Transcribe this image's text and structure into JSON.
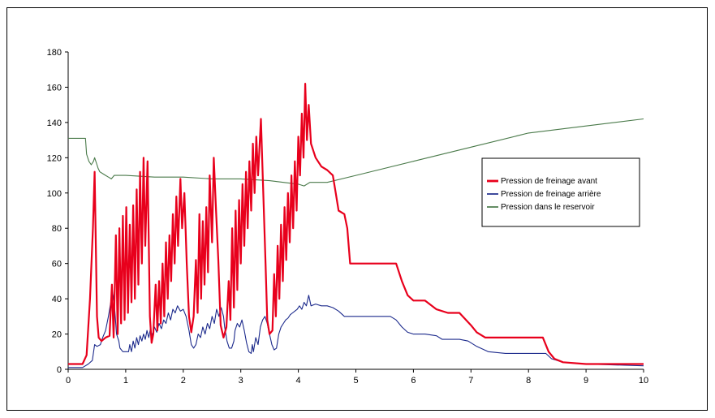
{
  "chart_data": {
    "type": "line",
    "title": "",
    "xlabel": "",
    "ylabel": "",
    "xlim": [
      0,
      10
    ],
    "ylim": [
      0,
      180
    ],
    "xticks": [
      0,
      1,
      2,
      3,
      4,
      5,
      6,
      7,
      8,
      9,
      10
    ],
    "yticks": [
      0,
      20,
      40,
      60,
      80,
      100,
      120,
      140,
      160,
      180
    ],
    "grid": false,
    "legend_position": "right",
    "series": [
      {
        "name": "Pression de freinage avant",
        "color": "#e8001c",
        "points": [
          [
            0,
            3
          ],
          [
            0.25,
            3
          ],
          [
            0.32,
            8
          ],
          [
            0.38,
            40
          ],
          [
            0.43,
            80
          ],
          [
            0.46,
            112
          ],
          [
            0.5,
            30
          ],
          [
            0.53,
            18
          ],
          [
            0.58,
            16
          ],
          [
            0.65,
            18
          ],
          [
            0.72,
            19
          ],
          [
            0.76,
            48
          ],
          [
            0.79,
            18
          ],
          [
            0.83,
            76
          ],
          [
            0.86,
            20
          ],
          [
            0.89,
            80
          ],
          [
            0.92,
            26
          ],
          [
            0.95,
            87
          ],
          [
            0.98,
            28
          ],
          [
            1.01,
            92
          ],
          [
            1.04,
            32
          ],
          [
            1.07,
            82
          ],
          [
            1.1,
            38
          ],
          [
            1.13,
            93
          ],
          [
            1.16,
            40
          ],
          [
            1.19,
            102
          ],
          [
            1.22,
            48
          ],
          [
            1.25,
            112
          ],
          [
            1.28,
            60
          ],
          [
            1.31,
            120
          ],
          [
            1.34,
            70
          ],
          [
            1.38,
            118
          ],
          [
            1.42,
            30
          ],
          [
            1.45,
            15
          ],
          [
            1.48,
            20
          ],
          [
            1.52,
            48
          ],
          [
            1.55,
            22
          ],
          [
            1.58,
            50
          ],
          [
            1.61,
            26
          ],
          [
            1.64,
            60
          ],
          [
            1.67,
            30
          ],
          [
            1.7,
            72
          ],
          [
            1.73,
            40
          ],
          [
            1.76,
            76
          ],
          [
            1.79,
            50
          ],
          [
            1.82,
            88
          ],
          [
            1.85,
            60
          ],
          [
            1.88,
            98
          ],
          [
            1.91,
            70
          ],
          [
            1.95,
            108
          ],
          [
            1.98,
            80
          ],
          [
            2.02,
            100
          ],
          [
            2.06,
            60
          ],
          [
            2.1,
            30
          ],
          [
            2.14,
            21
          ],
          [
            2.18,
            30
          ],
          [
            2.22,
            62
          ],
          [
            2.25,
            32
          ],
          [
            2.28,
            88
          ],
          [
            2.31,
            40
          ],
          [
            2.34,
            84
          ],
          [
            2.37,
            48
          ],
          [
            2.4,
            92
          ],
          [
            2.43,
            55
          ],
          [
            2.46,
            110
          ],
          [
            2.5,
            72
          ],
          [
            2.53,
            120
          ],
          [
            2.57,
            90
          ],
          [
            2.61,
            62
          ],
          [
            2.65,
            25
          ],
          [
            2.7,
            18
          ],
          [
            2.75,
            24
          ],
          [
            2.79,
            50
          ],
          [
            2.82,
            28
          ],
          [
            2.85,
            80
          ],
          [
            2.88,
            35
          ],
          [
            2.91,
            90
          ],
          [
            2.94,
            45
          ],
          [
            2.97,
            96
          ],
          [
            3.0,
            60
          ],
          [
            3.03,
            105
          ],
          [
            3.06,
            70
          ],
          [
            3.09,
            112
          ],
          [
            3.12,
            80
          ],
          [
            3.15,
            118
          ],
          [
            3.18,
            90
          ],
          [
            3.21,
            128
          ],
          [
            3.24,
            100
          ],
          [
            3.27,
            132
          ],
          [
            3.3,
            110
          ],
          [
            3.35,
            142
          ],
          [
            3.39,
            100
          ],
          [
            3.43,
            60
          ],
          [
            3.46,
            28
          ],
          [
            3.5,
            20
          ],
          [
            3.55,
            22
          ],
          [
            3.58,
            54
          ],
          [
            3.61,
            30
          ],
          [
            3.64,
            70
          ],
          [
            3.67,
            40
          ],
          [
            3.7,
            82
          ],
          [
            3.73,
            50
          ],
          [
            3.76,
            92
          ],
          [
            3.79,
            62
          ],
          [
            3.82,
            100
          ],
          [
            3.85,
            72
          ],
          [
            3.88,
            110
          ],
          [
            3.91,
            80
          ],
          [
            3.94,
            118
          ],
          [
            3.97,
            90
          ],
          [
            4.0,
            132
          ],
          [
            4.03,
            110
          ],
          [
            4.06,
            145
          ],
          [
            4.09,
            120
          ],
          [
            4.12,
            162
          ],
          [
            4.15,
            130
          ],
          [
            4.18,
            150
          ],
          [
            4.22,
            128
          ],
          [
            4.3,
            120
          ],
          [
            4.4,
            115
          ],
          [
            4.5,
            113
          ],
          [
            4.6,
            110
          ],
          [
            4.65,
            100
          ],
          [
            4.7,
            90
          ],
          [
            4.8,
            88
          ],
          [
            4.85,
            80
          ],
          [
            4.9,
            60
          ],
          [
            5.1,
            60
          ],
          [
            5.5,
            60
          ],
          [
            5.7,
            60
          ],
          [
            5.8,
            50
          ],
          [
            5.9,
            42
          ],
          [
            6.0,
            39
          ],
          [
            6.2,
            39
          ],
          [
            6.4,
            34
          ],
          [
            6.6,
            32
          ],
          [
            6.8,
            32
          ],
          [
            7.0,
            25
          ],
          [
            7.1,
            21
          ],
          [
            7.25,
            18
          ],
          [
            7.5,
            18
          ],
          [
            8.0,
            18
          ],
          [
            8.25,
            18
          ],
          [
            8.35,
            10
          ],
          [
            8.45,
            6
          ],
          [
            8.6,
            4
          ],
          [
            9.0,
            3
          ],
          [
            10,
            3
          ]
        ]
      },
      {
        "name": "Pression de freinage arrière",
        "color": "#1c2a8c",
        "points": [
          [
            0,
            1
          ],
          [
            0.25,
            1
          ],
          [
            0.35,
            3
          ],
          [
            0.42,
            5
          ],
          [
            0.46,
            14
          ],
          [
            0.5,
            13
          ],
          [
            0.56,
            14
          ],
          [
            0.6,
            18
          ],
          [
            0.65,
            22
          ],
          [
            0.7,
            30
          ],
          [
            0.74,
            38
          ],
          [
            0.76,
            46
          ],
          [
            0.8,
            38
          ],
          [
            0.84,
            20
          ],
          [
            0.88,
            16
          ],
          [
            0.9,
            12
          ],
          [
            0.95,
            10
          ],
          [
            1.0,
            10
          ],
          [
            1.05,
            10
          ],
          [
            1.07,
            14
          ],
          [
            1.1,
            10
          ],
          [
            1.13,
            16
          ],
          [
            1.16,
            12
          ],
          [
            1.19,
            18
          ],
          [
            1.22,
            14
          ],
          [
            1.25,
            19
          ],
          [
            1.28,
            16
          ],
          [
            1.31,
            20
          ],
          [
            1.34,
            17
          ],
          [
            1.37,
            22
          ],
          [
            1.4,
            18
          ],
          [
            1.43,
            23
          ],
          [
            1.46,
            19
          ],
          [
            1.5,
            24
          ],
          [
            1.54,
            21
          ],
          [
            1.58,
            26
          ],
          [
            1.62,
            23
          ],
          [
            1.66,
            28
          ],
          [
            1.7,
            26
          ],
          [
            1.74,
            32
          ],
          [
            1.78,
            28
          ],
          [
            1.82,
            34
          ],
          [
            1.86,
            32
          ],
          [
            1.9,
            36
          ],
          [
            1.95,
            33
          ],
          [
            2.0,
            34
          ],
          [
            2.05,
            30
          ],
          [
            2.1,
            22
          ],
          [
            2.14,
            14
          ],
          [
            2.18,
            12
          ],
          [
            2.22,
            14
          ],
          [
            2.26,
            20
          ],
          [
            2.3,
            18
          ],
          [
            2.34,
            24
          ],
          [
            2.38,
            20
          ],
          [
            2.42,
            26
          ],
          [
            2.46,
            23
          ],
          [
            2.5,
            30
          ],
          [
            2.54,
            26
          ],
          [
            2.58,
            34
          ],
          [
            2.62,
            30
          ],
          [
            2.66,
            35
          ],
          [
            2.7,
            30
          ],
          [
            2.72,
            24
          ],
          [
            2.76,
            16
          ],
          [
            2.8,
            12
          ],
          [
            2.84,
            12
          ],
          [
            2.88,
            16
          ],
          [
            2.9,
            22
          ],
          [
            2.94,
            26
          ],
          [
            2.98,
            24
          ],
          [
            3.02,
            28
          ],
          [
            3.06,
            22
          ],
          [
            3.1,
            15
          ],
          [
            3.14,
            10
          ],
          [
            3.18,
            9
          ],
          [
            3.2,
            14
          ],
          [
            3.22,
            10
          ],
          [
            3.26,
            18
          ],
          [
            3.3,
            14
          ],
          [
            3.34,
            24
          ],
          [
            3.38,
            28
          ],
          [
            3.42,
            30
          ],
          [
            3.46,
            26
          ],
          [
            3.5,
            20
          ],
          [
            3.54,
            14
          ],
          [
            3.58,
            11
          ],
          [
            3.62,
            12
          ],
          [
            3.66,
            20
          ],
          [
            3.7,
            24
          ],
          [
            3.74,
            26
          ],
          [
            3.78,
            28
          ],
          [
            3.82,
            29
          ],
          [
            3.86,
            31
          ],
          [
            3.9,
            32
          ],
          [
            3.94,
            33
          ],
          [
            3.98,
            34
          ],
          [
            4.02,
            36
          ],
          [
            4.06,
            34
          ],
          [
            4.1,
            38
          ],
          [
            4.14,
            36
          ],
          [
            4.18,
            42
          ],
          [
            4.22,
            36
          ],
          [
            4.3,
            37
          ],
          [
            4.4,
            36
          ],
          [
            4.5,
            36
          ],
          [
            4.6,
            35
          ],
          [
            4.7,
            33
          ],
          [
            4.8,
            30
          ],
          [
            5.0,
            30
          ],
          [
            5.5,
            30
          ],
          [
            5.6,
            30
          ],
          [
            5.7,
            28
          ],
          [
            5.8,
            24
          ],
          [
            5.9,
            21
          ],
          [
            6.0,
            20
          ],
          [
            6.2,
            20
          ],
          [
            6.4,
            19
          ],
          [
            6.5,
            17
          ],
          [
            6.8,
            17
          ],
          [
            6.95,
            16
          ],
          [
            7.1,
            13
          ],
          [
            7.3,
            10
          ],
          [
            7.6,
            9
          ],
          [
            8.0,
            9
          ],
          [
            8.3,
            9
          ],
          [
            8.4,
            6
          ],
          [
            8.6,
            4
          ],
          [
            9.0,
            3
          ],
          [
            10,
            2
          ]
        ]
      },
      {
        "name": "Pression dans le reservoir",
        "color": "#4a7a4a",
        "points": [
          [
            0,
            131
          ],
          [
            0.25,
            131
          ],
          [
            0.3,
            131
          ],
          [
            0.32,
            122
          ],
          [
            0.36,
            118
          ],
          [
            0.4,
            116
          ],
          [
            0.44,
            118
          ],
          [
            0.46,
            120
          ],
          [
            0.5,
            116
          ],
          [
            0.52,
            114
          ],
          [
            0.55,
            112
          ],
          [
            0.6,
            111
          ],
          [
            0.65,
            110
          ],
          [
            0.7,
            109
          ],
          [
            0.75,
            108
          ],
          [
            0.8,
            110
          ],
          [
            1.0,
            110
          ],
          [
            1.5,
            109
          ],
          [
            2.0,
            109
          ],
          [
            2.5,
            108
          ],
          [
            3.0,
            108
          ],
          [
            3.5,
            107
          ],
          [
            4.0,
            105
          ],
          [
            4.1,
            104
          ],
          [
            4.2,
            106
          ],
          [
            4.5,
            106
          ],
          [
            5.0,
            110
          ],
          [
            6.0,
            118
          ],
          [
            7.0,
            126
          ],
          [
            8.0,
            134
          ],
          [
            9.0,
            138
          ],
          [
            10,
            142
          ]
        ]
      }
    ]
  }
}
